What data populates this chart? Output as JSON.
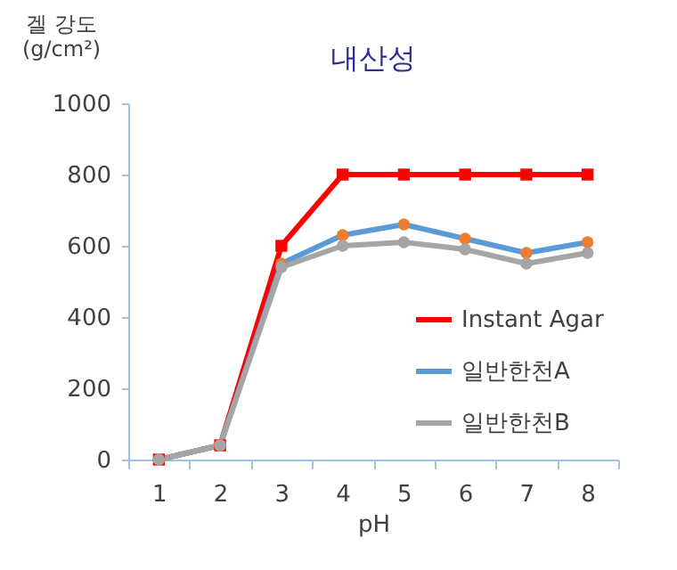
{
  "chart_data": {
    "type": "line",
    "title": "내산성",
    "ylabel": "겔 강도\n(g/cm²)",
    "xlabel": "pH",
    "categories": [
      "1",
      "2",
      "3",
      "4",
      "5",
      "6",
      "7",
      "8"
    ],
    "series": [
      {
        "name": "Instant Agar",
        "color": "#ff0000",
        "marker": "square",
        "values": [
          0,
          40,
          600,
          800,
          800,
          800,
          800,
          800
        ]
      },
      {
        "name": "일반한천A",
        "color": "#5b9bd5",
        "marker": "circle",
        "colors": [
          "#ed7d31",
          "#ed7d31",
          "#ed7d31",
          "#ed7d31",
          "#ed7d31",
          "#ed7d31",
          "#ed7d31",
          "#ed7d31"
        ],
        "values": [
          0,
          40,
          550,
          630,
          660,
          620,
          580,
          610
        ]
      },
      {
        "name": "일반한천B",
        "color": "#a5a5a5",
        "marker": "circle",
        "values": [
          0,
          40,
          540,
          600,
          610,
          590,
          550,
          580
        ]
      }
    ],
    "ylim": [
      0,
      1000
    ],
    "yticks": [
      0,
      200,
      400,
      600,
      800,
      1000
    ],
    "grid": false,
    "legend": "right"
  }
}
